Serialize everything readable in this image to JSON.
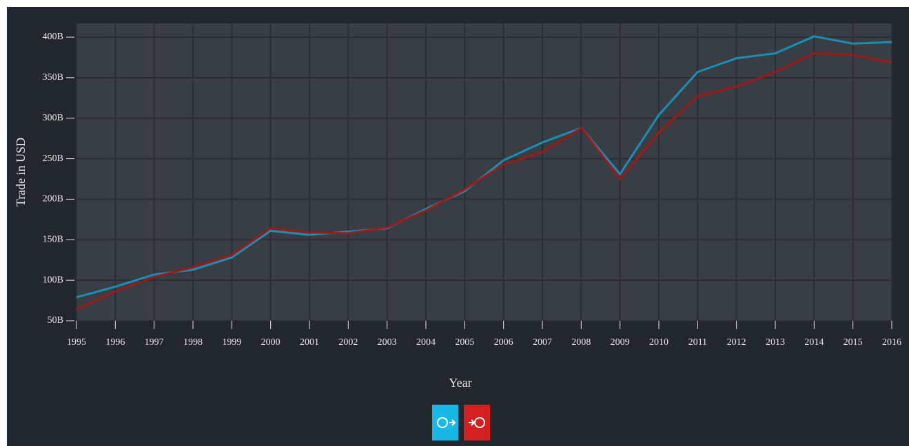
{
  "chart_data": {
    "type": "line",
    "y_label": "Trade in USD",
    "x_label": "Year",
    "x": [
      1995,
      1996,
      1997,
      1998,
      1999,
      2000,
      2001,
      2002,
      2003,
      2004,
      2005,
      2006,
      2007,
      2008,
      2009,
      2010,
      2011,
      2012,
      2013,
      2014,
      2015,
      2016
    ],
    "series": [
      {
        "color": "#1a8fb6",
        "values": [
          79,
          92,
          107,
          113,
          128,
          161,
          156,
          160,
          164,
          188,
          210,
          248,
          270,
          288,
          231,
          304,
          357,
          374,
          380,
          401,
          392,
          394
        ]
      },
      {
        "color": "#a01818",
        "values": [
          64,
          86,
          104,
          116,
          131,
          164,
          159,
          158,
          165,
          186,
          212,
          243,
          258,
          288,
          225,
          282,
          327,
          339,
          357,
          380,
          378,
          369
        ]
      }
    ],
    "xlim": [
      1995,
      2016
    ],
    "xticks": [
      1995,
      1996,
      1997,
      1998,
      1999,
      2000,
      2001,
      2002,
      2003,
      2004,
      2005,
      2006,
      2007,
      2008,
      2009,
      2010,
      2011,
      2012,
      2013,
      2014,
      2015,
      2016
    ],
    "ylim": [
      50,
      417
    ],
    "yticks": [
      {
        "value": 50,
        "label": "50B"
      },
      {
        "value": 100,
        "label": "100B"
      },
      {
        "value": 150,
        "label": "150B"
      },
      {
        "value": 200,
        "label": "200B"
      },
      {
        "value": 250,
        "label": "250B"
      },
      {
        "value": 300,
        "label": "300B"
      },
      {
        "value": 350,
        "label": "350B"
      },
      {
        "value": 400,
        "label": "400B"
      }
    ],
    "grid": true
  }
}
